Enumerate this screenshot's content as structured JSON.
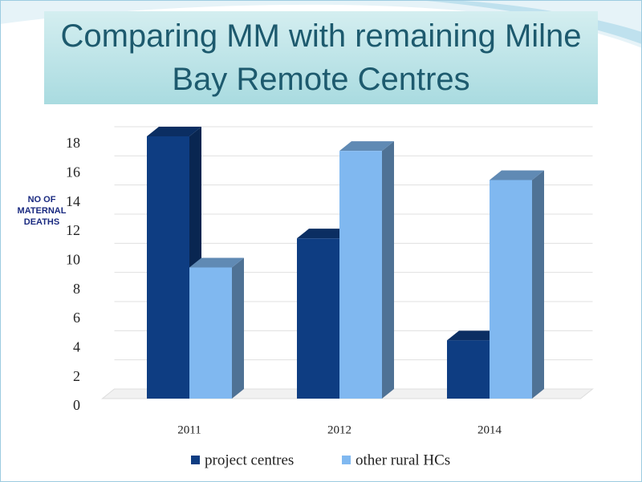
{
  "chart_data": {
    "type": "bar3d",
    "title": "Comparing  MM with remaining Milne Bay Remote Centres",
    "y_label": "NO OF MATERNAL DEATHS",
    "categories": [
      "2011",
      "2012",
      "2014"
    ],
    "series": [
      {
        "name": "project centres",
        "color": "#0e3d82",
        "values": [
          18,
          11,
          4
        ]
      },
      {
        "name": "other rural HCs",
        "color": "#80b8f0",
        "values": [
          9,
          17,
          15
        ]
      }
    ],
    "ylim": [
      0,
      18
    ],
    "yticks": [
      0,
      2,
      4,
      6,
      8,
      10,
      12,
      14,
      16,
      18
    ],
    "grid": true
  }
}
